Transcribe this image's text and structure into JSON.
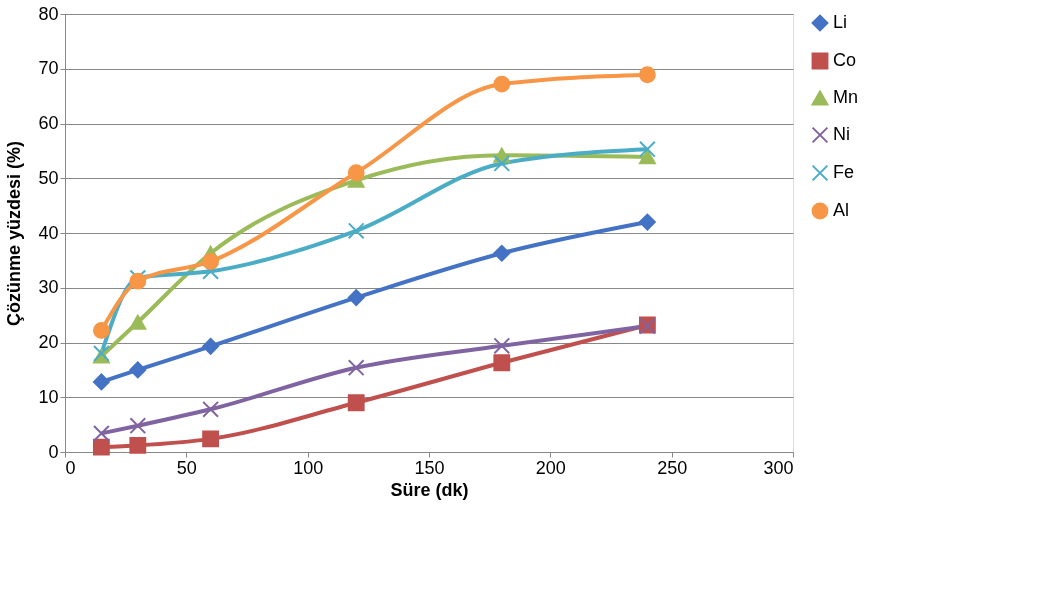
{
  "chart_data": {
    "type": "line",
    "xlabel": "Süre (dk)",
    "ylabel": "Çözünme yüzdesi (%)",
    "x": [
      15,
      30,
      60,
      120,
      180,
      240
    ],
    "xlim": [
      0,
      300
    ],
    "xticks": [
      0,
      50,
      100,
      150,
      200,
      250,
      300
    ],
    "ylim": [
      0,
      80
    ],
    "yticks": [
      0,
      10,
      20,
      30,
      40,
      50,
      60,
      70,
      80
    ],
    "grid": "y",
    "legend": "right",
    "series": [
      {
        "name": "Li",
        "color": "#4472c4",
        "marker": "diamond",
        "values": [
          12.8,
          15,
          19.3,
          28.2,
          36.3,
          42
        ]
      },
      {
        "name": "Co",
        "color": "#c0504d",
        "marker": "square",
        "values": [
          0.9,
          1.2,
          2.4,
          9,
          16.3,
          23.2
        ]
      },
      {
        "name": "Mn",
        "color": "#9bbb59",
        "marker": "triangle",
        "values": [
          17.5,
          23.7,
          36.3,
          49.6,
          54.2,
          53.9
        ]
      },
      {
        "name": "Ni",
        "color": "#8064a2",
        "marker": "cross",
        "values": [
          3.4,
          4.8,
          7.8,
          15.4,
          19.4,
          23
        ]
      },
      {
        "name": "Fe",
        "color": "#4bacc6",
        "marker": "cross",
        "values": [
          18,
          31.8,
          33,
          40.4,
          52.7,
          55.3
        ]
      },
      {
        "name": "Al",
        "color": "#f79646",
        "marker": "circle",
        "values": [
          22.2,
          31.2,
          34.8,
          51,
          67.2,
          68.9
        ]
      }
    ]
  }
}
